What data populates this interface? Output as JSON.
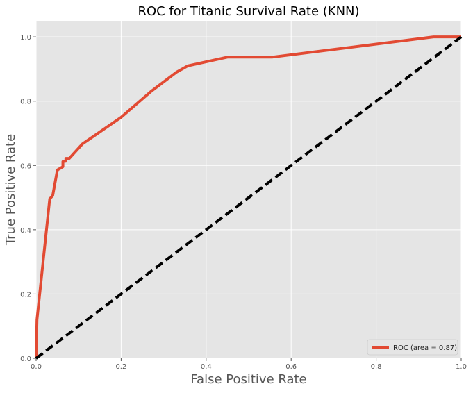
{
  "chart_data": {
    "type": "line",
    "title": "ROC for Titanic Survival Rate (KNN)",
    "xlabel": "False Positive Rate",
    "ylabel": "True Positive Rate",
    "xlim": [
      0,
      1
    ],
    "ylim": [
      0,
      1.05
    ],
    "xticks": [
      "0.0",
      "0.2",
      "0.4",
      "0.6",
      "0.8",
      "1.0"
    ],
    "yticks": [
      "0.0",
      "0.2",
      "0.4",
      "0.6",
      "0.8",
      "1.0"
    ],
    "grid": true,
    "legend_position": "lower-right",
    "series": [
      {
        "name": "ROC (area = 0.87)",
        "color": "#e24a33",
        "style": "solid",
        "x": [
          0,
          0.002,
          0.006,
          0.032,
          0.039,
          0.05,
          0.063,
          0.063,
          0.07,
          0.07,
          0.078,
          0.109,
          0.2,
          0.27,
          0.33,
          0.357,
          0.45,
          0.555,
          0.935,
          1.0
        ],
        "y": [
          0,
          0.12,
          0.17,
          0.496,
          0.506,
          0.586,
          0.596,
          0.612,
          0.613,
          0.622,
          0.622,
          0.667,
          0.75,
          0.83,
          0.89,
          0.91,
          0.937,
          0.937,
          1.0,
          1.0
        ]
      },
      {
        "color": "#000000",
        "style": "dashed",
        "x": [
          0,
          1
        ],
        "y": [
          0,
          1
        ]
      }
    ]
  }
}
